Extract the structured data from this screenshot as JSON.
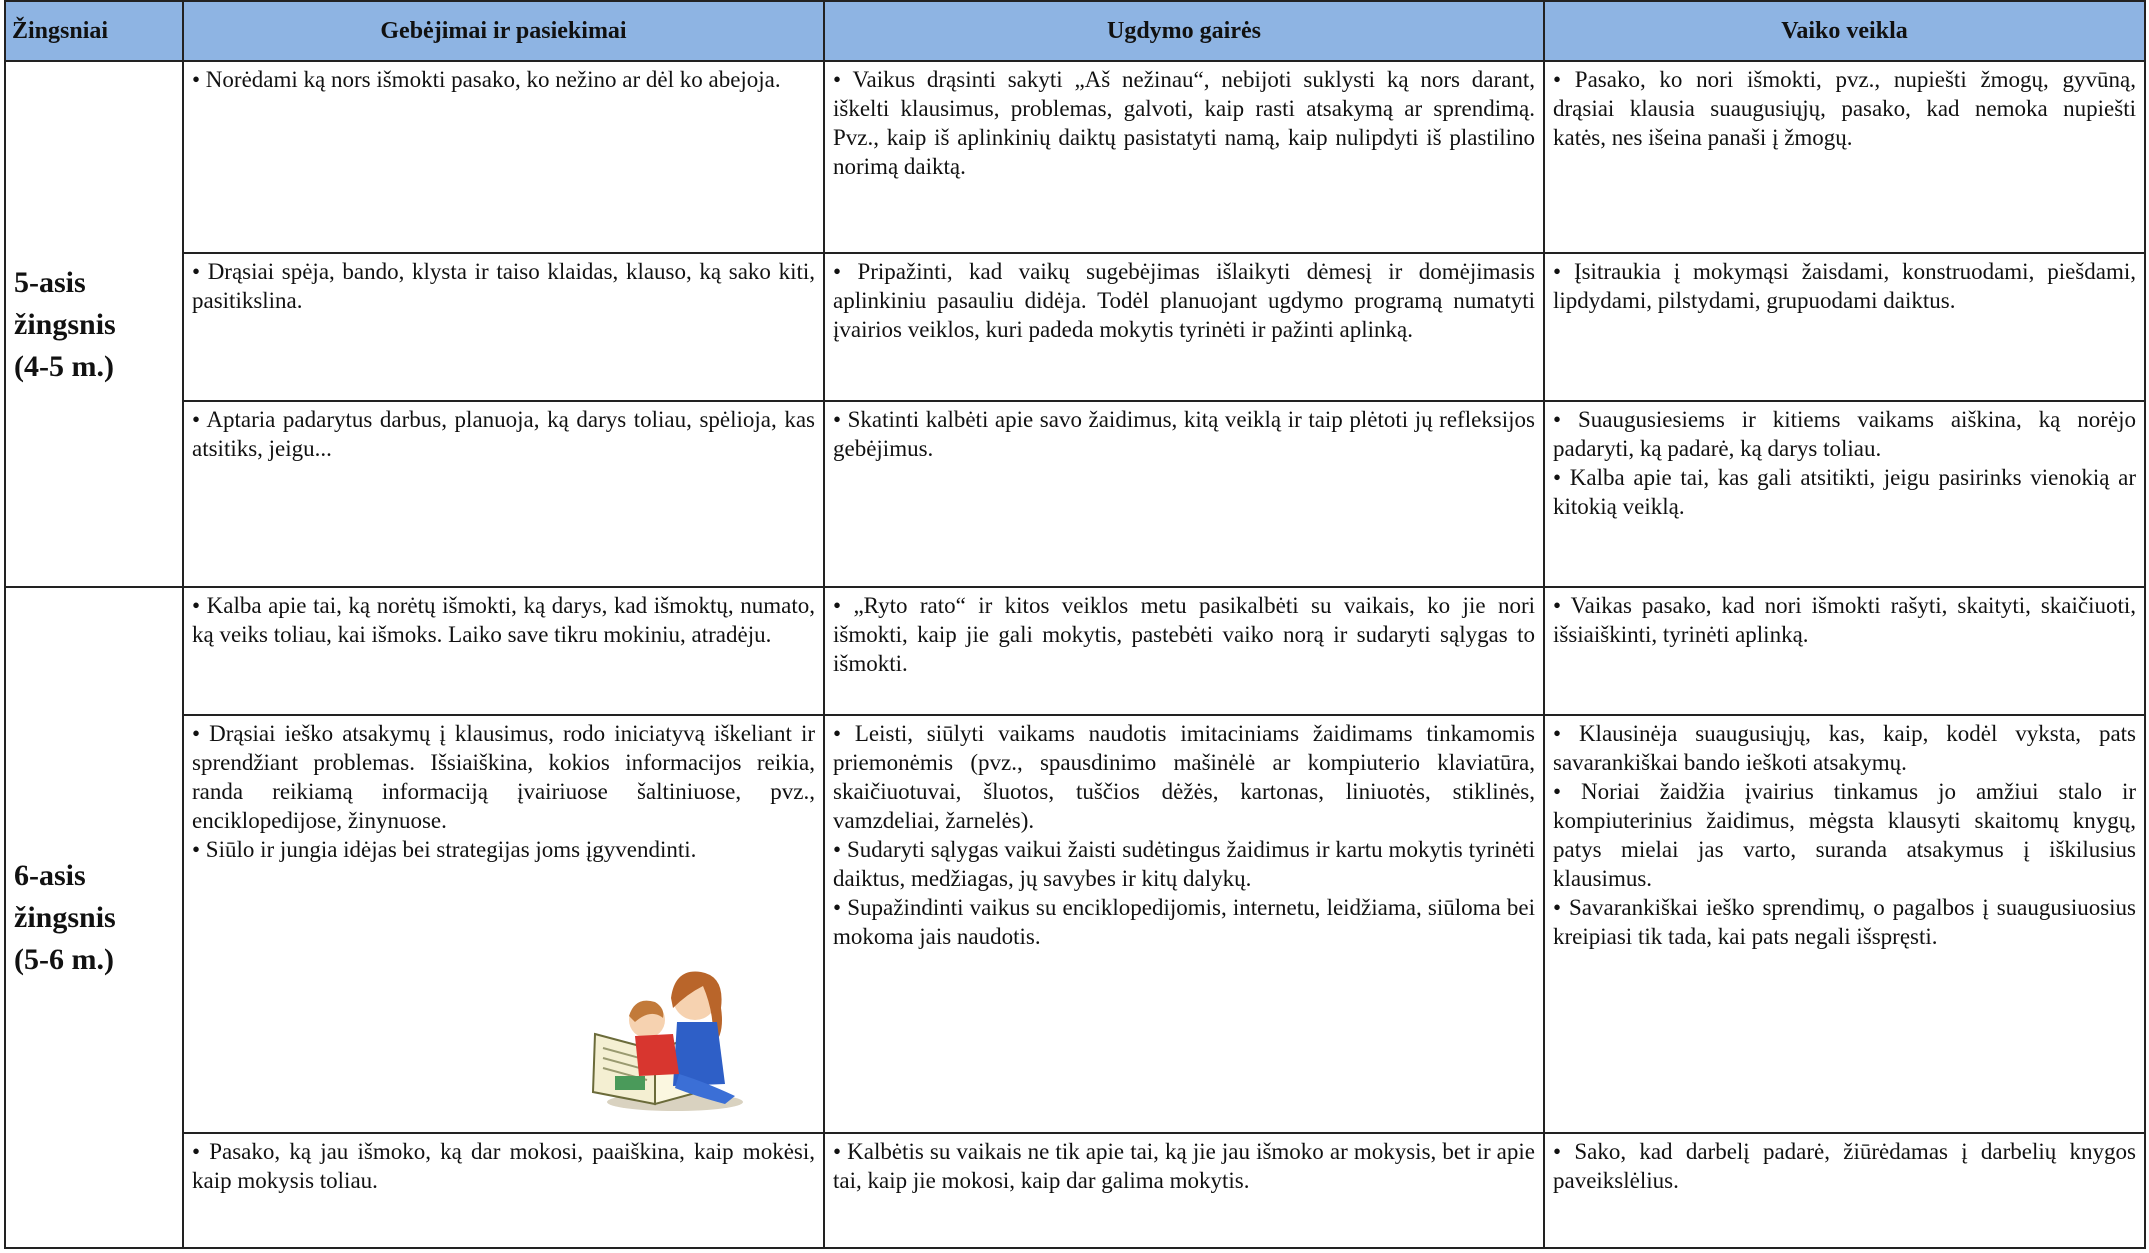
{
  "table": {
    "headers": [
      "Žingsniai",
      "Gebėjimai ir pasiekimai",
      "Ugdymo gairės",
      "Vaiko veikla"
    ],
    "groups": [
      {
        "step": [
          "5-asis",
          "žingsnis",
          "(4-5 m.)"
        ],
        "rows": [
          [
            [
              "• Norėdami ką nors išmokti pasako, ko nežino ar dėl ko abejoja."
            ],
            [
              "• Vaikus drąsinti sakyti „Aš nežinau“, nebijoti suklysti ką nors darant, iškelti klausimus, problemas, galvoti, kaip rasti atsakymą ar sprendimą. Pvz., kaip iš aplinkinių daiktų pasistatyti namą, kaip nulipdyti iš plastilino norimą daiktą."
            ],
            [
              "• Pasako, ko nori išmokti, pvz., nupiešti žmogų, gyvūną, drąsiai klausia suaugusiųjų, pasako, kad nemoka nupiešti katės, nes išeina panaši į žmogų."
            ]
          ],
          [
            [
              "• Drąsiai spėja, bando, klysta ir taiso klaidas, klauso, ką sako kiti, pasitikslina."
            ],
            [
              "• Pripažinti, kad vaikų sugebėjimas išlaikyti dėmesį ir domėjimasis aplinkiniu pasauliu didėja. Todėl planuojant ugdymo programą numatyti įvairios veiklos, kuri padeda mokytis tyrinėti ir pažinti aplinką."
            ],
            [
              "• Įsitraukia į mokymąsi žaisdami, konstruodami, piešdami, lipdydami, pilstydami, grupuodami daiktus."
            ]
          ],
          [
            [
              "• Aptaria padarytus darbus, planuoja, ką darys toliau, spėlioja, kas atsitiks, jeigu..."
            ],
            [
              "• Skatinti kalbėti apie savo žaidimus, kitą veiklą ir taip plėtoti jų refleksijos gebėjimus."
            ],
            [
              "• Suaugusiesiems ir kitiems vaikams aiškina, ką norėjo padaryti, ką padarė, ką darys toliau.",
              "• Kalba apie tai, kas gali atsitikti, jeigu pasirinks vienokią ar kitokią veiklą."
            ]
          ]
        ]
      },
      {
        "step": [
          "6-asis",
          "žingsnis",
          "(5-6 m.)"
        ],
        "rows": [
          [
            [
              "• Kalba apie tai, ką norėtų išmokti, ką darys, kad išmoktų, numato, ką veiks toliau, kai išmoks. Laiko save tikru mokiniu, atradėju."
            ],
            [
              "• „Ryto rato“ ir kitos veiklos metu pasikalbėti su vaikais, ko jie nori išmokti, kaip jie gali mokytis, pastebėti vaiko norą ir sudaryti sąlygas to išmokti."
            ],
            [
              "• Vaikas pasako, kad nori išmokti rašyti, skaityti, skaičiuoti, išsiaiškinti, tyrinėti aplinką."
            ]
          ],
          [
            [
              "• Drąsiai ieško atsakymų į klausimus, rodo iniciatyvą iškeliant ir sprendžiant problemas. Išsiaiškina, kokios informacijos reikia, randa reikiamą informaciją įvairiuose šaltiniuose, pvz., enciklopedijose, žinynuose.",
              "• Siūlo ir jungia idėjas bei strategijas joms įgyvendinti."
            ],
            [
              "• Leisti, siūlyti vaikams naudotis imitaciniams žaidimams tinkamomis priemonėmis (pvz., spausdinimo mašinėlė ar kompiuterio klaviatūra, skaičiuotuvai, šluotos, tuščios dėžės, kartonas, liniuotės, stiklinės, vamzdeliai, žarnelės).",
              "• Sudaryti sąlygas vaikui žaisti sudėtingus žaidimus ir kartu mokytis tyrinėti daiktus, medžiagas, jų savybes ir kitų dalykų.",
              "• Supažindinti vaikus su enciklopedijomis, internetu, leidžiama, siūloma bei mokoma jais naudotis."
            ],
            [
              "• Klausinėja suaugusiųjų, kas, kaip, kodėl vyksta, pats savarankiškai bando ieškoti atsakymų.",
              "• Noriai žaidžia įvairius tinkamus jo amžiui stalo ir kompiuterinius žaidimus, mėgsta klausyti skaitomų knygų, patys mielai jas varto, suranda atsakymus į iškilusius klausimus.",
              "• Savarankiškai ieško sprendimų, o pagalbos į suaugusiuosius kreipiasi tik tada, kai pats negali išspręsti."
            ]
          ],
          [
            [
              "• Pasako, ką jau išmoko, ką dar mokosi, paaiškina, kaip mokėsi, kaip mokysis toliau."
            ],
            [
              "• Kalbėtis su vaikais ne tik apie tai, ką jie jau išmoko ar mokysis, bet ir apie tai, kaip jie mokosi, kaip dar galima mokytis."
            ],
            [
              "• Sako, kad darbelį padarė, žiūrėdamas į darbelių knygos paveikslėlius."
            ]
          ]
        ]
      }
    ]
  }
}
